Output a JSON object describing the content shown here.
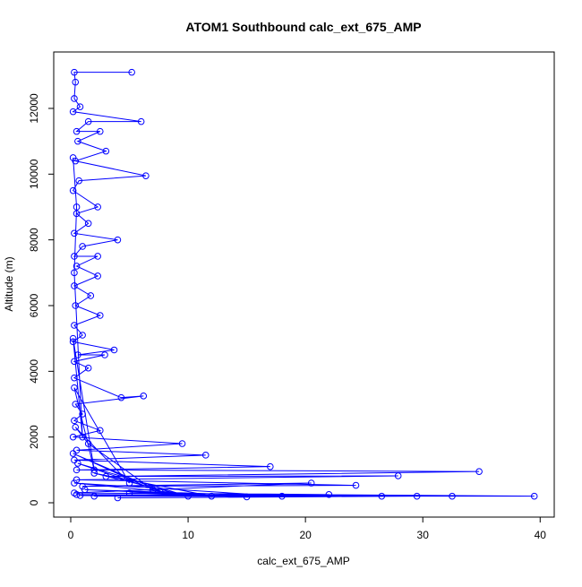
{
  "chart_data": {
    "type": "line",
    "markers": "open-circle",
    "title": "ATOM1 Southbound calc_ext_675_AMP",
    "x_label": "calc_ext_675_AMP",
    "y_label": "Altitude (m)",
    "color": "#0000ff",
    "x": [
      5.2,
      0.3,
      0.4,
      0.3,
      0.8,
      0.2,
      6,
      1.5,
      0.5,
      2.5,
      0.6,
      3,
      0.4,
      6.4,
      0.7,
      0.2,
      2.3,
      0.5,
      1.5,
      0.3,
      4,
      1,
      0.3,
      2.3,
      0.5,
      2.3,
      0.3,
      1.7,
      0.4,
      2.5,
      0.3,
      1,
      0.2,
      3.7,
      0.6,
      2.9,
      0.3,
      1.5,
      0.3,
      4.3,
      6.2,
      0.4,
      1,
      0.3,
      2.5,
      0.2,
      9.5,
      0.5,
      11.5,
      0.3,
      17,
      0.5,
      34.8,
      3,
      27.9,
      0.5,
      24.3,
      1,
      20.5,
      0.3,
      39.5,
      2,
      32.5,
      0.5,
      29.5,
      4,
      26.5,
      0.8,
      22,
      5,
      15,
      1.2,
      18,
      0.3,
      12,
      2,
      10,
      0.6,
      8,
      0.2,
      7,
      1.5,
      0.4,
      5,
      0.3,
      2,
      0.2,
      1,
      0.3,
      0.5,
      0.2
    ],
    "values": [
      13100,
      13100,
      12800,
      12300,
      12050,
      11900,
      11600,
      11600,
      11300,
      11300,
      11000,
      10700,
      10400,
      9950,
      9800,
      9500,
      9000,
      8800,
      8500,
      8200,
      8000,
      7800,
      7500,
      7500,
      7200,
      6900,
      6600,
      6300,
      6000,
      5700,
      5400,
      5100,
      4900,
      4650,
      4500,
      4500,
      4300,
      4100,
      3800,
      3200,
      3250,
      3000,
      2700,
      2500,
      2200,
      2000,
      1800,
      1600,
      1450,
      1300,
      1100,
      1000,
      950,
      800,
      820,
      700,
      530,
      500,
      600,
      300,
      200,
      200,
      200,
      250,
      200,
      150,
      200,
      220,
      250,
      300,
      180,
      400,
      200,
      600,
      200,
      900,
      200,
      1200,
      300,
      1500,
      400,
      1800,
      2300,
      600,
      3500,
      1000,
      5000,
      2000,
      7000,
      9000,
      10500
    ],
    "xlim": [
      -1.45,
      41.2
    ],
    "ylim": [
      -436,
      13717
    ],
    "xticks": [
      0,
      10,
      20,
      30,
      40
    ],
    "yticks": [
      0,
      2000,
      4000,
      6000,
      8000,
      10000,
      12000
    ]
  }
}
